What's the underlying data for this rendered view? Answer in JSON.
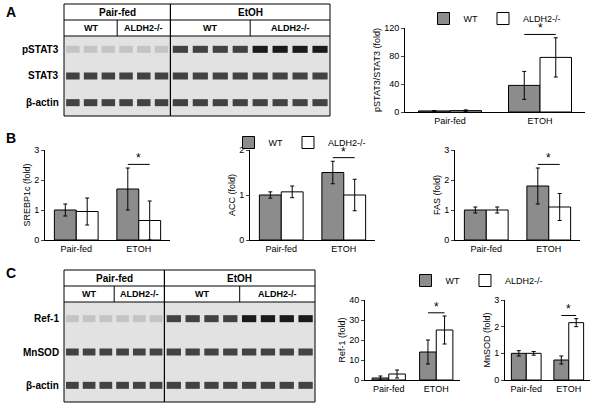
{
  "panel_labels": [
    "A",
    "B",
    "C"
  ],
  "blots": [
    {
      "groups": [
        "Pair-fed",
        "EtOH"
      ],
      "genotypes": [
        "WT",
        "ALDH2-/-"
      ],
      "rows": [
        "pSTAT3",
        "STAT3",
        "β-actin"
      ]
    },
    {
      "groups": [
        "Pair-fed",
        "EtOH"
      ],
      "genotypes": [
        "WT",
        "ALDH2-/-"
      ],
      "rows": [
        "Ref-1",
        "MnSOD",
        "β-actin"
      ]
    }
  ],
  "chart_data": [
    {
      "type": "bar",
      "ylabel": "pSTAT3/STAT3 (fold)",
      "categories": [
        "Pair-fed",
        "ETOH"
      ],
      "series": [
        {
          "name": "WT",
          "color": "#8c8c8c",
          "values": [
            1.5,
            38
          ],
          "error": [
            0.5,
            20
          ]
        },
        {
          "name": "ALDH2-/-",
          "color": "#ffffff",
          "values": [
            2,
            78
          ],
          "error": [
            1,
            28
          ]
        }
      ],
      "ylim": [
        0,
        120
      ],
      "yticks": [
        0,
        40,
        80,
        120
      ],
      "significance": [
        {
          "category": "ETOH",
          "text": "*"
        }
      ],
      "legend": "top"
    },
    {
      "type": "bar",
      "ylabel": "SREBP1c (fold)",
      "categories": [
        "Pair-fed",
        "ETOH"
      ],
      "series": [
        {
          "name": "WT",
          "color": "#8c8c8c",
          "values": [
            1.0,
            1.7
          ],
          "error": [
            0.2,
            0.7
          ]
        },
        {
          "name": "ALDH2-/-",
          "color": "#ffffff",
          "values": [
            0.95,
            0.65
          ],
          "error": [
            0.45,
            0.65
          ]
        }
      ],
      "ylim": [
        0,
        3
      ],
      "yticks": [
        0,
        1,
        2,
        3
      ],
      "significance": [
        {
          "category": "ETOH",
          "text": "*"
        }
      ]
    },
    {
      "type": "bar",
      "ylabel": "ACC (fold)",
      "categories": [
        "Pair-fed",
        "ETOH"
      ],
      "series": [
        {
          "name": "WT",
          "color": "#8c8c8c",
          "values": [
            1.0,
            1.5
          ],
          "error": [
            0.07,
            0.25
          ]
        },
        {
          "name": "ALDH2-/-",
          "color": "#ffffff",
          "values": [
            1.07,
            1.0
          ],
          "error": [
            0.13,
            0.35
          ]
        }
      ],
      "ylim": [
        0,
        2
      ],
      "yticks": [
        0,
        1,
        2
      ],
      "significance": [
        {
          "category": "ETOH",
          "text": "*"
        }
      ],
      "legend": "top"
    },
    {
      "type": "bar",
      "ylabel": "FAS (fold)",
      "categories": [
        "Pair-fed",
        "ETOH"
      ],
      "series": [
        {
          "name": "WT",
          "color": "#8c8c8c",
          "values": [
            1.0,
            1.8
          ],
          "error": [
            0.1,
            0.6
          ]
        },
        {
          "name": "ALDH2-/-",
          "color": "#ffffff",
          "values": [
            1.0,
            1.1
          ],
          "error": [
            0.1,
            0.45
          ]
        }
      ],
      "ylim": [
        0,
        3
      ],
      "yticks": [
        0,
        1,
        2,
        3
      ],
      "significance": [
        {
          "category": "ETOH",
          "text": "*"
        }
      ]
    },
    {
      "type": "bar",
      "ylabel": "Ref-1 (fold)",
      "categories": [
        "Pair-fed",
        "ETOH"
      ],
      "series": [
        {
          "name": "WT",
          "color": "#8c8c8c",
          "values": [
            1,
            14
          ],
          "error": [
            1,
            6
          ]
        },
        {
          "name": "ALDH2-/-",
          "color": "#ffffff",
          "values": [
            3,
            25
          ],
          "error": [
            2,
            7
          ]
        }
      ],
      "ylim": [
        0,
        40
      ],
      "yticks": [
        0,
        10,
        20,
        30,
        40
      ],
      "significance": [
        {
          "category": "ETOH",
          "text": "*"
        }
      ],
      "legend": "top"
    },
    {
      "type": "bar",
      "ylabel": "MnSOD (fold)",
      "categories": [
        "Pair-fed",
        "ETOH"
      ],
      "series": [
        {
          "name": "WT",
          "color": "#8c8c8c",
          "values": [
            1.0,
            0.75
          ],
          "error": [
            0.1,
            0.15
          ]
        },
        {
          "name": "ALDH2-/-",
          "color": "#ffffff",
          "values": [
            1.0,
            2.15
          ],
          "error": [
            0.07,
            0.15
          ]
        }
      ],
      "ylim": [
        0,
        3
      ],
      "yticks": [
        0,
        1,
        2,
        3
      ],
      "significance": [
        {
          "category": "ETOH",
          "text": "*"
        }
      ]
    }
  ]
}
